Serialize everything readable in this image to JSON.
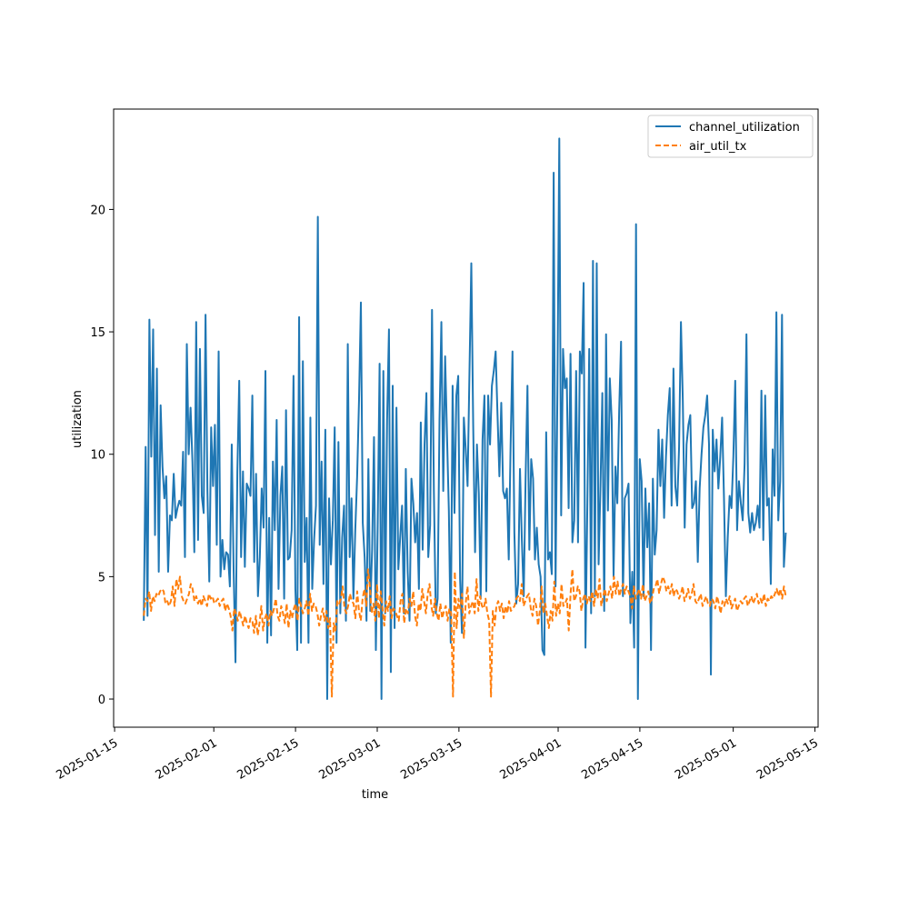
{
  "chart_data": {
    "type": "line",
    "title": "",
    "xlabel": "time",
    "ylabel": "utilization",
    "xlim": [
      "2025-01-14T20:00",
      "2025-05-15T13:00"
    ],
    "ylim": [
      -1.15,
      24.1
    ],
    "x_ticks": [
      "2025-01-15",
      "2025-02-01",
      "2025-02-15",
      "2025-03-01",
      "2025-03-15",
      "2025-04-01",
      "2025-04-15",
      "2025-05-01",
      "2025-05-15"
    ],
    "y_ticks": [
      0,
      5,
      10,
      15,
      20
    ],
    "grid": false,
    "legend": "top-right",
    "x_start": "2025-01-20",
    "x_end": "2025-05-10",
    "series": [
      {
        "name": "channel_utilization",
        "color": "#1f77b4",
        "style": "solid",
        "values": [
          3.2,
          10.3,
          3.4,
          15.5,
          9.9,
          15.1,
          6.7,
          13.5,
          5.2,
          12.0,
          9.5,
          8.2,
          9.1,
          5.2,
          7.5,
          7.3,
          9.2,
          7.4,
          7.8,
          8.1,
          7.9,
          10.1,
          5.8,
          14.5,
          10.0,
          11.9,
          9.7,
          6.0,
          15.4,
          6.5,
          14.3,
          8.3,
          7.6,
          15.7,
          8.5,
          4.8,
          11.1,
          8.7,
          11.2,
          6.3,
          14.2,
          5.0,
          6.5,
          5.3,
          6.0,
          5.9,
          4.6,
          10.4,
          5.3,
          1.5,
          9.3,
          13.0,
          5.8,
          9.3,
          5.4,
          8.8,
          8.6,
          8.3,
          12.4,
          5.6,
          9.2,
          4.2,
          5.8,
          8.6,
          7.0,
          13.4,
          2.3,
          7.4,
          2.6,
          9.7,
          6.9,
          11.4,
          4.5,
          8.3,
          9.5,
          4.1,
          11.8,
          5.7,
          5.8,
          6.9,
          13.2,
          4.5,
          2.0,
          15.6,
          2.3,
          13.8,
          5.6,
          7.4,
          2.3,
          11.5,
          4.5,
          6.5,
          7.9,
          19.7,
          6.3,
          9.7,
          4.7,
          11.0,
          0.0,
          8.2,
          5.5,
          7.3,
          11.1,
          2.3,
          10.5,
          3.5,
          6.6,
          7.9,
          3.2,
          14.5,
          5.8,
          8.2,
          4.1,
          6.9,
          9.1,
          12.2,
          16.2,
          7.2,
          5.8,
          3.2,
          9.8,
          3.6,
          6.1,
          10.7,
          2.0,
          7.2,
          13.7,
          0.0,
          13.4,
          3.5,
          11.4,
          15.1,
          1.1,
          12.8,
          2.9,
          11.9,
          5.3,
          6.6,
          7.9,
          3.5,
          9.4,
          5.2,
          3.2,
          9.0,
          8.0,
          6.4,
          7.6,
          4.5,
          11.3,
          6.1,
          10.4,
          12.5,
          5.8,
          7.1,
          15.9,
          8.5,
          3.5,
          4.1,
          11.4,
          15.4,
          8.5,
          14.0,
          10.8,
          7.7,
          2.3,
          12.8,
          7.6,
          12.4,
          13.2,
          4.9,
          2.7,
          11.5,
          10.2,
          8.7,
          13.3,
          17.8,
          11.2,
          6.0,
          10.4,
          8.4,
          4.1,
          10.6,
          12.4,
          4.4,
          12.4,
          10.4,
          12.8,
          13.4,
          14.2,
          11.6,
          9.1,
          12.1,
          8.5,
          8.2,
          8.6,
          5.7,
          10.4,
          14.2,
          6.8,
          3.9,
          4.7,
          9.4,
          6.5,
          4.2,
          9.0,
          12.8,
          6.1,
          9.8,
          9.0,
          5.7,
          7.0,
          5.5,
          5.0,
          2.0,
          1.8,
          10.9,
          5.7,
          6.0,
          5.1,
          21.5,
          4.6,
          12.6,
          22.9,
          7.5,
          14.3,
          12.7,
          13.1,
          7.8,
          14.1,
          6.4,
          7.3,
          13.4,
          6.4,
          14.2,
          13.3,
          17.0,
          2.1,
          8.0,
          14.3,
          3.5,
          17.9,
          4.2,
          17.8,
          5.5,
          8.7,
          12.5,
          3.6,
          14.9,
          7.7,
          13.1,
          11.4,
          5.0,
          9.5,
          8.0,
          11.8,
          14.6,
          4.2,
          8.2,
          8.4,
          8.8,
          3.1,
          5.2,
          2.1,
          19.4,
          0.0,
          9.8,
          8.9,
          4.2,
          8.6,
          6.2,
          8.0,
          2.0,
          9.0,
          5.9,
          6.9,
          11.0,
          8.7,
          10.6,
          7.4,
          9.9,
          11.6,
          12.7,
          7.9,
          13.5,
          8.7,
          7.9,
          10.3,
          15.4,
          12.2,
          7.0,
          10.4,
          11.2,
          11.6,
          7.8,
          8.0,
          8.9,
          5.6,
          8.6,
          10.0,
          11.1,
          11.6,
          12.4,
          10.4,
          1.0,
          11.0,
          9.3,
          10.6,
          8.6,
          9.9,
          11.5,
          8.2,
          4.2,
          6.6,
          8.3,
          7.8,
          9.9,
          13.0,
          6.9,
          8.9,
          8.0,
          7.3,
          9.6,
          14.9,
          7.6,
          6.8,
          7.6,
          6.9,
          7.2,
          7.9,
          7.0,
          12.6,
          6.5,
          12.4,
          7.9,
          8.2,
          4.7,
          10.2,
          8.3,
          15.8,
          7.3,
          8.9,
          15.7,
          5.4,
          6.8
        ]
      },
      {
        "name": "air_util_tx",
        "color": "#ff7f0e",
        "style": "dashed",
        "values": [
          3.4,
          4.1,
          4.0,
          4.4,
          3.6,
          4.2,
          4.0,
          4.3,
          4.2,
          4.4,
          4.5,
          4.4,
          3.9,
          4.0,
          3.8,
          4.0,
          4.6,
          3.8,
          4.9,
          4.5,
          5.0,
          4.2,
          4.0,
          3.9,
          4.1,
          4.3,
          4.7,
          4.5,
          4.0,
          4.2,
          3.9,
          4.1,
          3.8,
          4.2,
          4.0,
          3.8,
          4.3,
          4.1,
          4.2,
          3.9,
          4.0,
          4.1,
          3.8,
          4.0,
          4.1,
          3.6,
          3.9,
          3.7,
          3.4,
          2.8,
          3.7,
          3.5,
          3.2,
          3.6,
          3.3,
          3.0,
          3.4,
          3.1,
          2.9,
          3.3,
          3.2,
          2.7,
          3.4,
          2.6,
          3.1,
          3.8,
          2.8,
          3.3,
          3.5,
          3.0,
          3.6,
          3.4,
          3.7,
          4.1,
          3.4,
          3.2,
          3.8,
          3.5,
          3.1,
          3.9,
          2.9,
          3.6,
          3.3,
          3.7,
          3.9,
          3.2,
          4.1,
          3.8,
          3.5,
          3.7,
          4.0,
          3.4,
          4.3,
          3.6,
          3.9,
          3.8,
          3.5,
          3.0,
          3.4,
          3.7,
          3.2,
          3.6,
          2.9,
          3.3,
          0.1,
          3.1,
          2.8,
          4.0,
          3.9,
          4.1,
          4.6,
          3.7,
          3.5,
          3.8,
          4.3,
          4.0,
          3.9,
          3.3,
          4.4,
          3.6,
          3.2,
          4.1,
          4.5,
          3.8,
          5.3,
          4.6,
          3.5,
          3.9,
          3.2,
          4.7,
          3.3,
          4.4,
          3.7,
          3.0,
          4.0,
          3.6,
          4.2,
          3.3,
          3.7,
          3.6,
          3.4,
          3.2,
          4.0,
          4.3,
          3.1,
          3.7,
          3.5,
          4.1,
          3.8,
          4.4,
          3.4,
          3.0,
          3.9,
          3.6,
          4.5,
          4.0,
          3.5,
          4.3,
          4.7,
          3.8,
          3.4,
          4.1,
          3.5,
          3.2,
          3.9,
          3.3,
          3.6,
          3.8,
          3.2,
          3.7,
          3.5,
          0.1,
          5.2,
          2.9,
          4.1,
          3.7,
          4.3,
          2.5,
          3.9,
          4.6,
          3.5,
          3.8,
          4.0,
          3.5,
          4.9,
          3.6,
          4.2,
          3.8,
          3.7,
          4.1,
          3.5,
          3.2,
          0.1,
          3.6,
          3.0,
          3.8,
          4.0,
          3.6,
          3.9,
          3.3,
          3.8,
          3.5,
          4.0,
          3.6,
          3.7,
          3.8,
          4.1,
          4.2,
          4.0,
          4.7,
          3.8,
          4.0,
          4.2,
          4.3,
          3.7,
          3.4,
          4.1,
          3.8,
          3.0,
          3.6,
          4.6,
          3.5,
          3.9,
          3.4,
          2.9,
          3.6,
          3.2,
          4.8,
          3.4,
          3.9,
          3.5,
          4.7,
          3.8,
          3.9,
          4.1,
          2.8,
          4.3,
          5.3,
          4.0,
          4.2,
          4.6,
          4.4,
          3.6,
          4.1,
          4.3,
          3.9,
          4.2,
          4.0,
          4.4,
          3.8,
          4.5,
          4.1,
          4.9,
          3.8,
          4.2,
          4.5,
          4.0,
          4.3,
          4.6,
          4.1,
          5.0,
          4.3,
          4.8,
          4.2,
          4.5,
          4.7,
          4.3,
          4.6,
          4.4,
          4.2,
          3.7,
          4.6,
          4.1,
          4.3,
          4.5,
          4.1,
          4.7,
          4.0,
          4.2,
          4.4,
          3.9,
          4.1,
          4.5,
          4.6,
          4.9,
          4.3,
          4.7,
          5.0,
          4.8,
          4.4,
          4.6,
          4.3,
          4.7,
          4.2,
          4.5,
          4.4,
          4.1,
          4.3,
          4.6,
          4.0,
          4.2,
          4.5,
          4.1,
          4.3,
          4.7,
          4.0,
          3.9,
          4.1,
          4.3,
          3.8,
          4.0,
          4.2,
          3.9,
          3.8,
          4.1,
          4.0,
          3.7,
          4.2,
          3.9,
          3.5,
          4.0,
          3.8,
          4.1,
          3.9,
          4.2,
          3.7,
          3.9,
          4.1,
          3.6,
          3.8,
          4.0,
          3.9,
          4.1,
          4.2,
          3.8,
          4.0,
          4.2,
          3.9,
          4.1,
          4.3,
          3.9,
          4.1,
          3.9,
          4.3,
          3.8,
          4.1,
          4.0,
          4.2,
          4.1,
          4.3,
          4.5,
          4.2,
          4.5,
          4.1,
          4.6,
          4.2
        ]
      }
    ]
  }
}
